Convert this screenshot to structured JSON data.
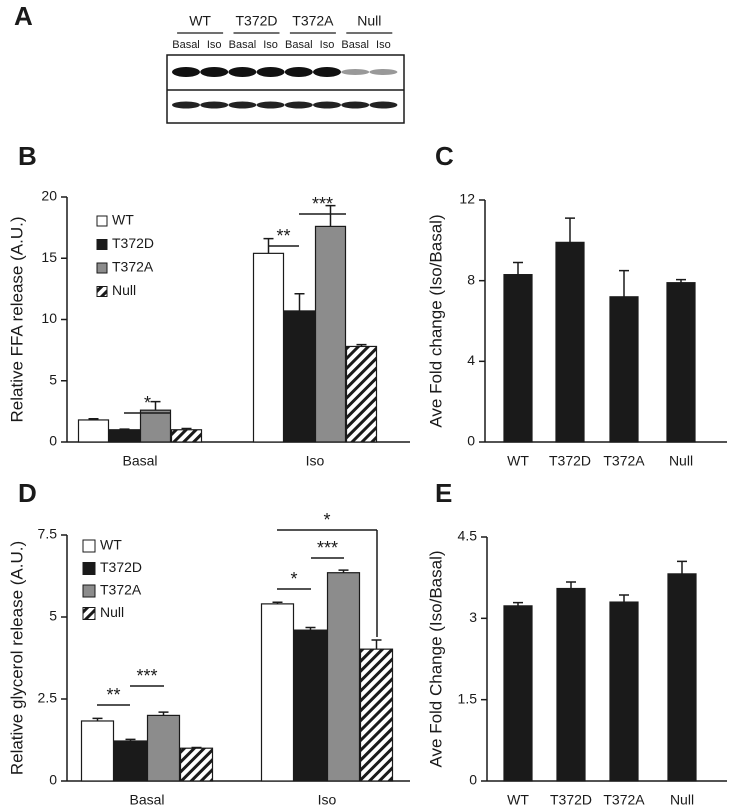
{
  "blot": {
    "panel": "A",
    "groups": [
      "WT",
      "T372D",
      "T372A",
      "Null"
    ],
    "lanes": [
      "Basal",
      "Iso",
      "Basal",
      "Iso",
      "Basal",
      "Iso",
      "Basal",
      "Iso"
    ]
  },
  "chart_data": [
    {
      "type": "grouped-bar",
      "panel": "B",
      "y_label": "Relative FFA release (A.U.)",
      "categories": [
        "Basal",
        "Iso"
      ],
      "series": [
        {
          "name": "WT",
          "color": "#ffffff",
          "values": [
            1.8,
            15.4
          ],
          "errors": [
            0.1,
            1.2
          ]
        },
        {
          "name": "T372D",
          "color": "#1a1a1a",
          "values": [
            1.0,
            10.7
          ],
          "errors": [
            0.05,
            1.4
          ]
        },
        {
          "name": "T372A",
          "color": "#8c8c8c",
          "values": [
            2.6,
            17.6
          ],
          "errors": [
            0.7,
            1.7
          ]
        },
        {
          "name": "Null",
          "color": "#ffffff",
          "hatch": true,
          "values": [
            1.0,
            7.8
          ],
          "errors": [
            0.1,
            0.15
          ]
        }
      ],
      "ylim": [
        0,
        20
      ],
      "yticks": [
        0,
        5,
        10,
        15,
        20
      ],
      "annotations": [
        "*",
        "**",
        "***"
      ]
    },
    {
      "type": "bar",
      "panel": "C",
      "y_label": "Ave Fold change (Iso/Basal)",
      "categories": [
        "WT",
        "T372D",
        "T372A",
        "Null"
      ],
      "values": [
        8.3,
        9.9,
        7.2,
        7.9
      ],
      "errors": [
        0.6,
        1.2,
        1.3,
        0.15
      ],
      "color": "#1a1a1a",
      "ylim": [
        0,
        12
      ],
      "yticks": [
        0,
        4,
        8,
        12
      ]
    },
    {
      "type": "grouped-bar",
      "panel": "D",
      "y_label": "Relative glycerol release (A.U.)",
      "categories": [
        "Basal",
        "Iso"
      ],
      "series": [
        {
          "name": "WT",
          "color": "#ffffff",
          "values": [
            1.83,
            5.4
          ],
          "errors": [
            0.08,
            0.05
          ]
        },
        {
          "name": "T372D",
          "color": "#1a1a1a",
          "values": [
            1.22,
            4.6
          ],
          "errors": [
            0.05,
            0.08
          ]
        },
        {
          "name": "T372A",
          "color": "#8c8c8c",
          "values": [
            2.0,
            6.35
          ],
          "errors": [
            0.1,
            0.08
          ]
        },
        {
          "name": "Null",
          "color": "#ffffff",
          "hatch": true,
          "values": [
            1.0,
            4.02
          ],
          "errors": [
            0.02,
            0.28
          ]
        }
      ],
      "ylim": [
        0,
        7.5
      ],
      "yticks": [
        0,
        2.5,
        5,
        7.5
      ],
      "annotations": [
        "**",
        "***",
        "*",
        "***",
        "*"
      ]
    },
    {
      "type": "bar",
      "panel": "E",
      "y_label": "Ave Fold Change (Iso/Basal)",
      "categories": [
        "WT",
        "T372D",
        "T372A",
        "Null"
      ],
      "values": [
        3.23,
        3.55,
        3.3,
        3.82
      ],
      "errors": [
        0.06,
        0.12,
        0.13,
        0.23
      ],
      "color": "#1a1a1a",
      "ylim": [
        0,
        4.5
      ],
      "yticks": [
        0,
        1.5,
        3,
        4.5
      ]
    }
  ]
}
